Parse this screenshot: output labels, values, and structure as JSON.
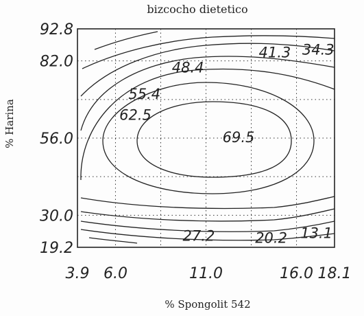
{
  "chart_data": {
    "type": "contour",
    "title": "bizcocho dietetico",
    "xlabel": "% Spongolit 542",
    "ylabel": "% Harina",
    "xlim": [
      3.9,
      18.1
    ],
    "ylim": [
      19.2,
      92.8
    ],
    "x_ticks": [
      3.9,
      6.0,
      11.0,
      16.0,
      18.1
    ],
    "x_tick_labels": [
      "3.9",
      "6.0",
      "11.0",
      "16.0",
      "18.1"
    ],
    "y_ticks": [
      19.2,
      30.0,
      56.0,
      82.0,
      92.8
    ],
    "y_tick_labels": [
      "19.2",
      "30.0",
      "56.0",
      "82.0",
      "92.8"
    ],
    "grid": true,
    "contour_labels": [
      {
        "text": "69.5",
        "x": 12.8,
        "y": 56.5
      },
      {
        "text": "62.5",
        "x": 7.1,
        "y": 64.0
      },
      {
        "text": "55.4",
        "x": 7.6,
        "y": 71.0
      },
      {
        "text": "48.4",
        "x": 10.0,
        "y": 80.0
      },
      {
        "text": "41.3",
        "x": 14.8,
        "y": 85.0
      },
      {
        "text": "34.3",
        "x": 17.2,
        "y": 86.0
      },
      {
        "text": "27.2",
        "x": 10.6,
        "y": 23.3
      },
      {
        "text": "20.2",
        "x": 14.6,
        "y": 22.6
      },
      {
        "text": "13.1",
        "x": 17.1,
        "y": 24.2
      }
    ],
    "contour_levels": [
      69.5,
      62.5,
      55.4,
      48.4,
      41.3,
      34.3,
      27.2,
      20.2,
      13.1
    ]
  }
}
